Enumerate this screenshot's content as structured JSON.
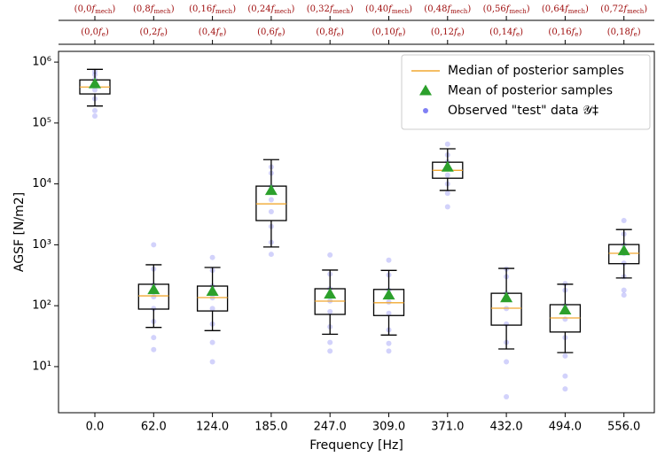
{
  "chart_data": {
    "type": "box",
    "xlabel": "Frequency [Hz]",
    "ylabel": "AGSF [N/m2]",
    "log_y": true,
    "categories": [
      "0.0",
      "62.0",
      "124.0",
      "185.0",
      "247.0",
      "309.0",
      "371.0",
      "432.0",
      "494.0",
      "556.0"
    ],
    "ylim": [
      1.75,
      1500000
    ],
    "yticks": [
      {
        "value": 10,
        "label": "10¹"
      },
      {
        "value": 100,
        "label": "10²"
      },
      {
        "value": 1000,
        "label": "10³"
      },
      {
        "value": 10000,
        "label": "10⁴"
      },
      {
        "value": 100000,
        "label": "10⁵"
      },
      {
        "value": 1000000,
        "label": "10⁶"
      }
    ],
    "boxes": {
      "whislo": [
        190000,
        44,
        39,
        920,
        34,
        33,
        7800,
        19.5,
        17,
        285
      ],
      "q1": [
        300000,
        88,
        82,
        2500,
        72,
        69,
        12400,
        48,
        37,
        490
      ],
      "q3": [
        510000,
        225,
        210,
        9200,
        190,
        185,
        22700,
        160,
        104,
        1010
      ],
      "whishi": [
        760000,
        470,
        425,
        25000,
        385,
        380,
        37700,
        410,
        225,
        1780
      ],
      "color": "#000000"
    },
    "series": [
      {
        "name": "Median of posterior samples",
        "color": "#f0a830",
        "values": [
          390000,
          145,
          136,
          4700,
          119,
          112,
          16700,
          91,
          63,
          725
        ]
      },
      {
        "name": "Mean of posterior samples",
        "color": "#2ca02c",
        "values": [
          440000,
          183,
          172,
          7800,
          155,
          150,
          18800,
          135,
          85,
          800
        ]
      },
      {
        "name": "Observed \"test\" data 𝒴‡",
        "color": "#4a4af0",
        "values": [
          [
            130000,
            160000,
            250000,
            350000,
            420000,
            520000,
            620000,
            700000
          ],
          [
            19,
            30,
            55,
            90,
            140,
            220,
            400,
            1000
          ],
          [
            12,
            25,
            50,
            90,
            135,
            210,
            380,
            620
          ],
          [
            700,
            1100,
            2000,
            3500,
            5500,
            9000,
            15000,
            19000
          ],
          [
            18,
            25,
            45,
            80,
            120,
            190,
            330,
            680
          ],
          [
            18,
            24,
            40,
            75,
            115,
            180,
            320,
            560
          ],
          [
            4200,
            7000,
            10000,
            14000,
            18000,
            23000,
            30000,
            45000
          ],
          [
            3.2,
            12,
            25,
            50,
            90,
            160,
            300,
            400
          ],
          [
            4.3,
            7,
            15,
            30,
            60,
            100,
            180,
            230
          ],
          [
            150,
            180,
            300,
            500,
            720,
            1000,
            1500,
            2500
          ]
        ]
      }
    ],
    "top_axes": [
      {
        "color": "#a01010",
        "labels": [
          {
            "prefix": "(0,0",
            "symbol": "f",
            "sub": "mech",
            "suffix": ")"
          },
          {
            "prefix": "(0,8",
            "symbol": "f",
            "sub": "mech",
            "suffix": ")"
          },
          {
            "prefix": "(0,16",
            "symbol": "f",
            "sub": "mech",
            "suffix": ")"
          },
          {
            "prefix": "(0,24",
            "symbol": "f",
            "sub": "mech",
            "suffix": ")"
          },
          {
            "prefix": "(0,32",
            "symbol": "f",
            "sub": "mech",
            "suffix": ")"
          },
          {
            "prefix": "(0,40",
            "symbol": "f",
            "sub": "mech",
            "suffix": ")"
          },
          {
            "prefix": "(0,48",
            "symbol": "f",
            "sub": "mech",
            "suffix": ")"
          },
          {
            "prefix": "(0,56",
            "symbol": "f",
            "sub": "mech",
            "suffix": ")"
          },
          {
            "prefix": "(0,64",
            "symbol": "f",
            "sub": "mech",
            "suffix": ")"
          },
          {
            "prefix": "(0,72",
            "symbol": "f",
            "sub": "mech",
            "suffix": ")"
          }
        ]
      },
      {
        "color": "#a01010",
        "labels": [
          {
            "prefix": "(0,0",
            "symbol": "f",
            "sub": "e",
            "suffix": ")"
          },
          {
            "prefix": "(0,2",
            "symbol": "f",
            "sub": "e",
            "suffix": ")"
          },
          {
            "prefix": "(0,4",
            "symbol": "f",
            "sub": "e",
            "suffix": ")"
          },
          {
            "prefix": "(0,6",
            "symbol": "f",
            "sub": "e",
            "suffix": ")"
          },
          {
            "prefix": "(0,8",
            "symbol": "f",
            "sub": "e",
            "suffix": ")"
          },
          {
            "prefix": "(0,10",
            "symbol": "f",
            "sub": "e",
            "suffix": ")"
          },
          {
            "prefix": "(0,12",
            "symbol": "f",
            "sub": "e",
            "suffix": ")"
          },
          {
            "prefix": "(0,14",
            "symbol": "f",
            "sub": "e",
            "suffix": ")"
          },
          {
            "prefix": "(0,16",
            "symbol": "f",
            "sub": "e",
            "suffix": ")"
          },
          {
            "prefix": "(0,18",
            "symbol": "f",
            "sub": "e",
            "suffix": ")"
          }
        ]
      }
    ],
    "legend": "upper right"
  }
}
